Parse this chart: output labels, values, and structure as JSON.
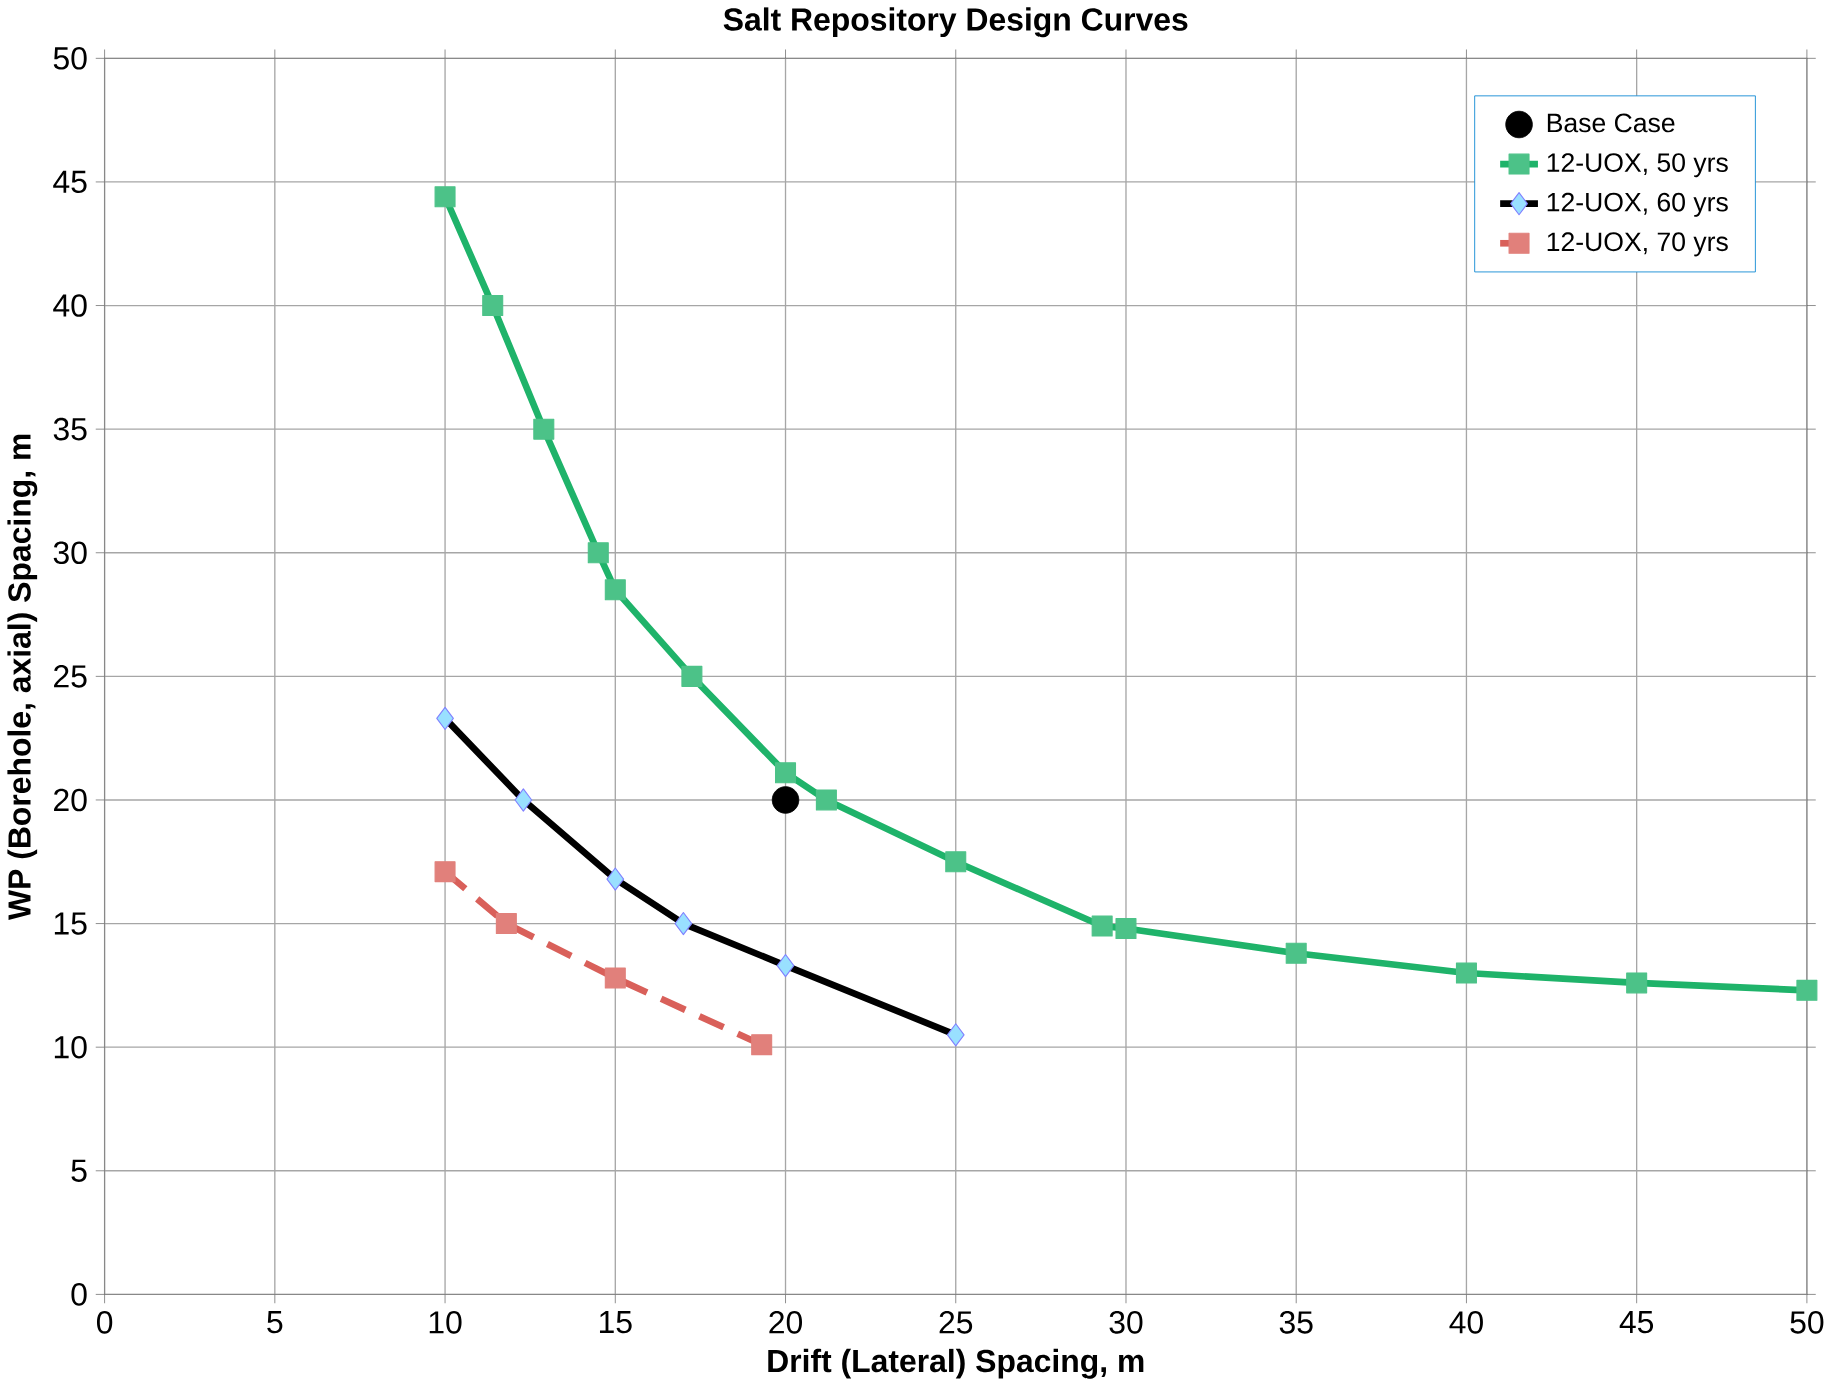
{
  "chart_data": {
    "type": "line",
    "title": "Salt Repository Design Curves",
    "xlabel": "Drift (Lateral) Spacing, m",
    "ylabel": "WP (Borehole, axial) Spacing, m",
    "xlim": [
      0,
      50
    ],
    "ylim": [
      0,
      50
    ],
    "xticks": [
      0,
      5,
      10,
      15,
      20,
      25,
      30,
      35,
      40,
      45,
      50
    ],
    "yticks": [
      0,
      5,
      10,
      15,
      20,
      25,
      30,
      35,
      40,
      45,
      50
    ],
    "grid": true,
    "legend": "top right",
    "series": [
      {
        "name": "Base Case",
        "type": "scatter",
        "marker": "circle",
        "color": "#000000",
        "x": [
          20
        ],
        "values": [
          20
        ]
      },
      {
        "name": "12-UOX, 50 yrs",
        "marker": "square",
        "line_style": "solid",
        "color": "#1fb36a",
        "x": [
          10,
          11.4,
          12.9,
          14.5,
          15,
          17.25,
          20,
          21.2,
          25,
          29.3,
          30,
          35,
          40,
          45,
          50
        ],
        "values": [
          44.4,
          40,
          35,
          30,
          28.5,
          25,
          21.1,
          20,
          17.5,
          14.9,
          14.8,
          13.8,
          13,
          12.6,
          12.3
        ]
      },
      {
        "name": "12-UOX, 60 yrs",
        "marker": "diamond",
        "line_style": "solid",
        "color": "#000000",
        "x": [
          10,
          12.3,
          15,
          17,
          20,
          25
        ],
        "values": [
          23.3,
          20,
          16.8,
          15,
          13.3,
          10.5
        ]
      },
      {
        "name": "12-UOX, 70 yrs",
        "marker": "square",
        "line_style": "dashed",
        "color": "#d9605a",
        "x": [
          10,
          11.8,
          15,
          19.3
        ],
        "values": [
          17.1,
          15,
          12.8,
          10.1
        ]
      }
    ]
  }
}
